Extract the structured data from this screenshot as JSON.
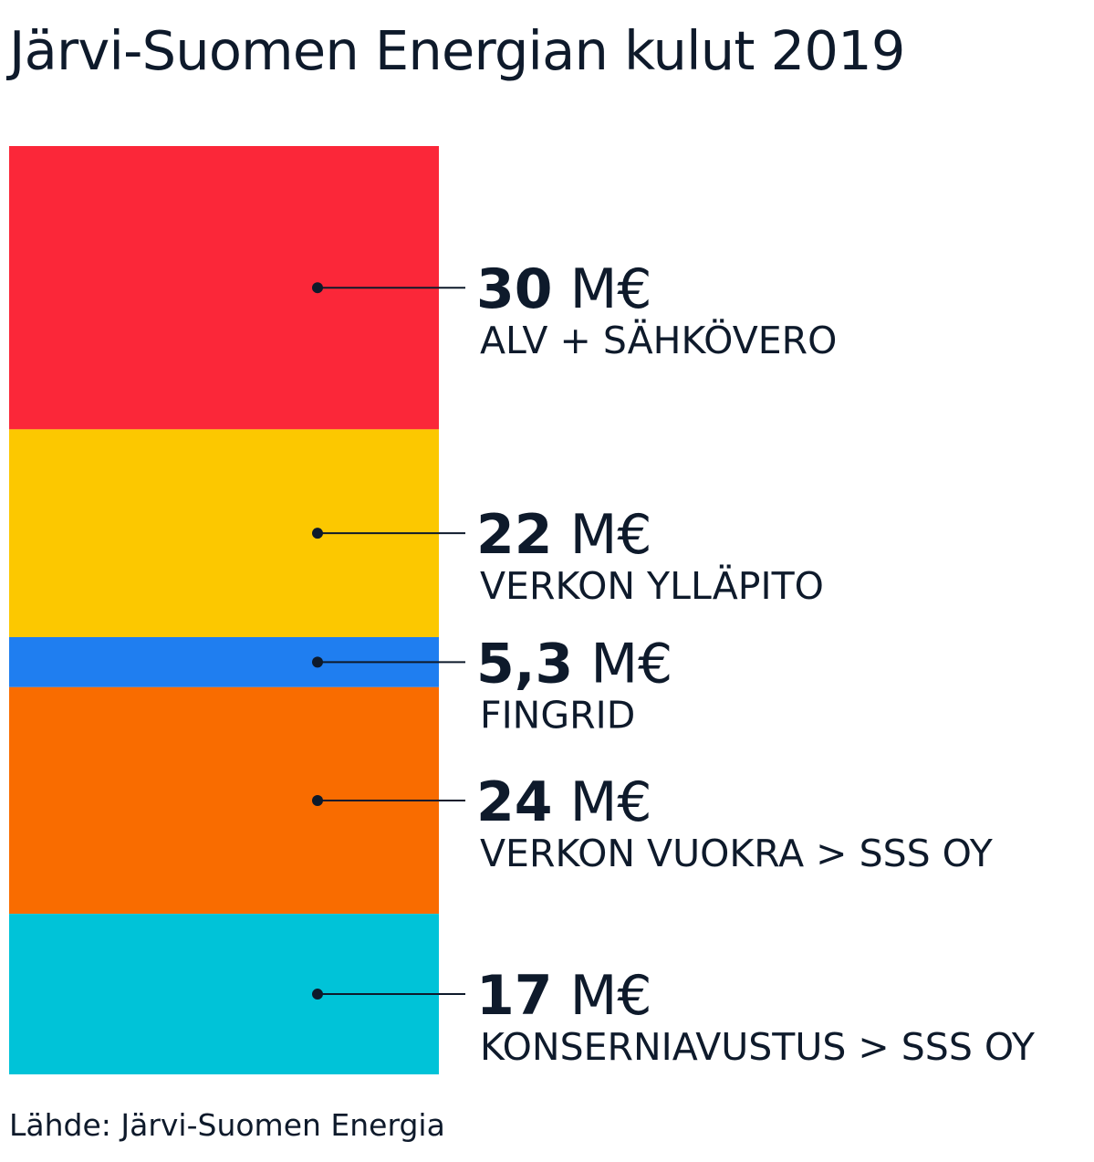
{
  "title": "Järvi-Suomen Energian kulut 2019",
  "source": "Lähde: Järvi-Suomen Energia",
  "chart_data": {
    "type": "bar",
    "stacked": true,
    "unit": "M€",
    "segments": [
      {
        "value": 30,
        "value_label": "30",
        "label": "ALV + SÄHKÖVERO",
        "color": "#fb2739"
      },
      {
        "value": 22,
        "value_label": "22",
        "label": "VERKON YLLÄPITO",
        "color": "#fcc800"
      },
      {
        "value": 5.3,
        "value_label": "5,3",
        "label": "FINGRID",
        "color": "#1f7ef0"
      },
      {
        "value": 24,
        "value_label": "24",
        "label": "VERKON VUOKRA > SSS OY",
        "color": "#f96c00"
      },
      {
        "value": 17,
        "value_label": "17",
        "label": "KONSERNIAVUSTUS > SSS OY",
        "color": "#00c3d8"
      }
    ]
  }
}
